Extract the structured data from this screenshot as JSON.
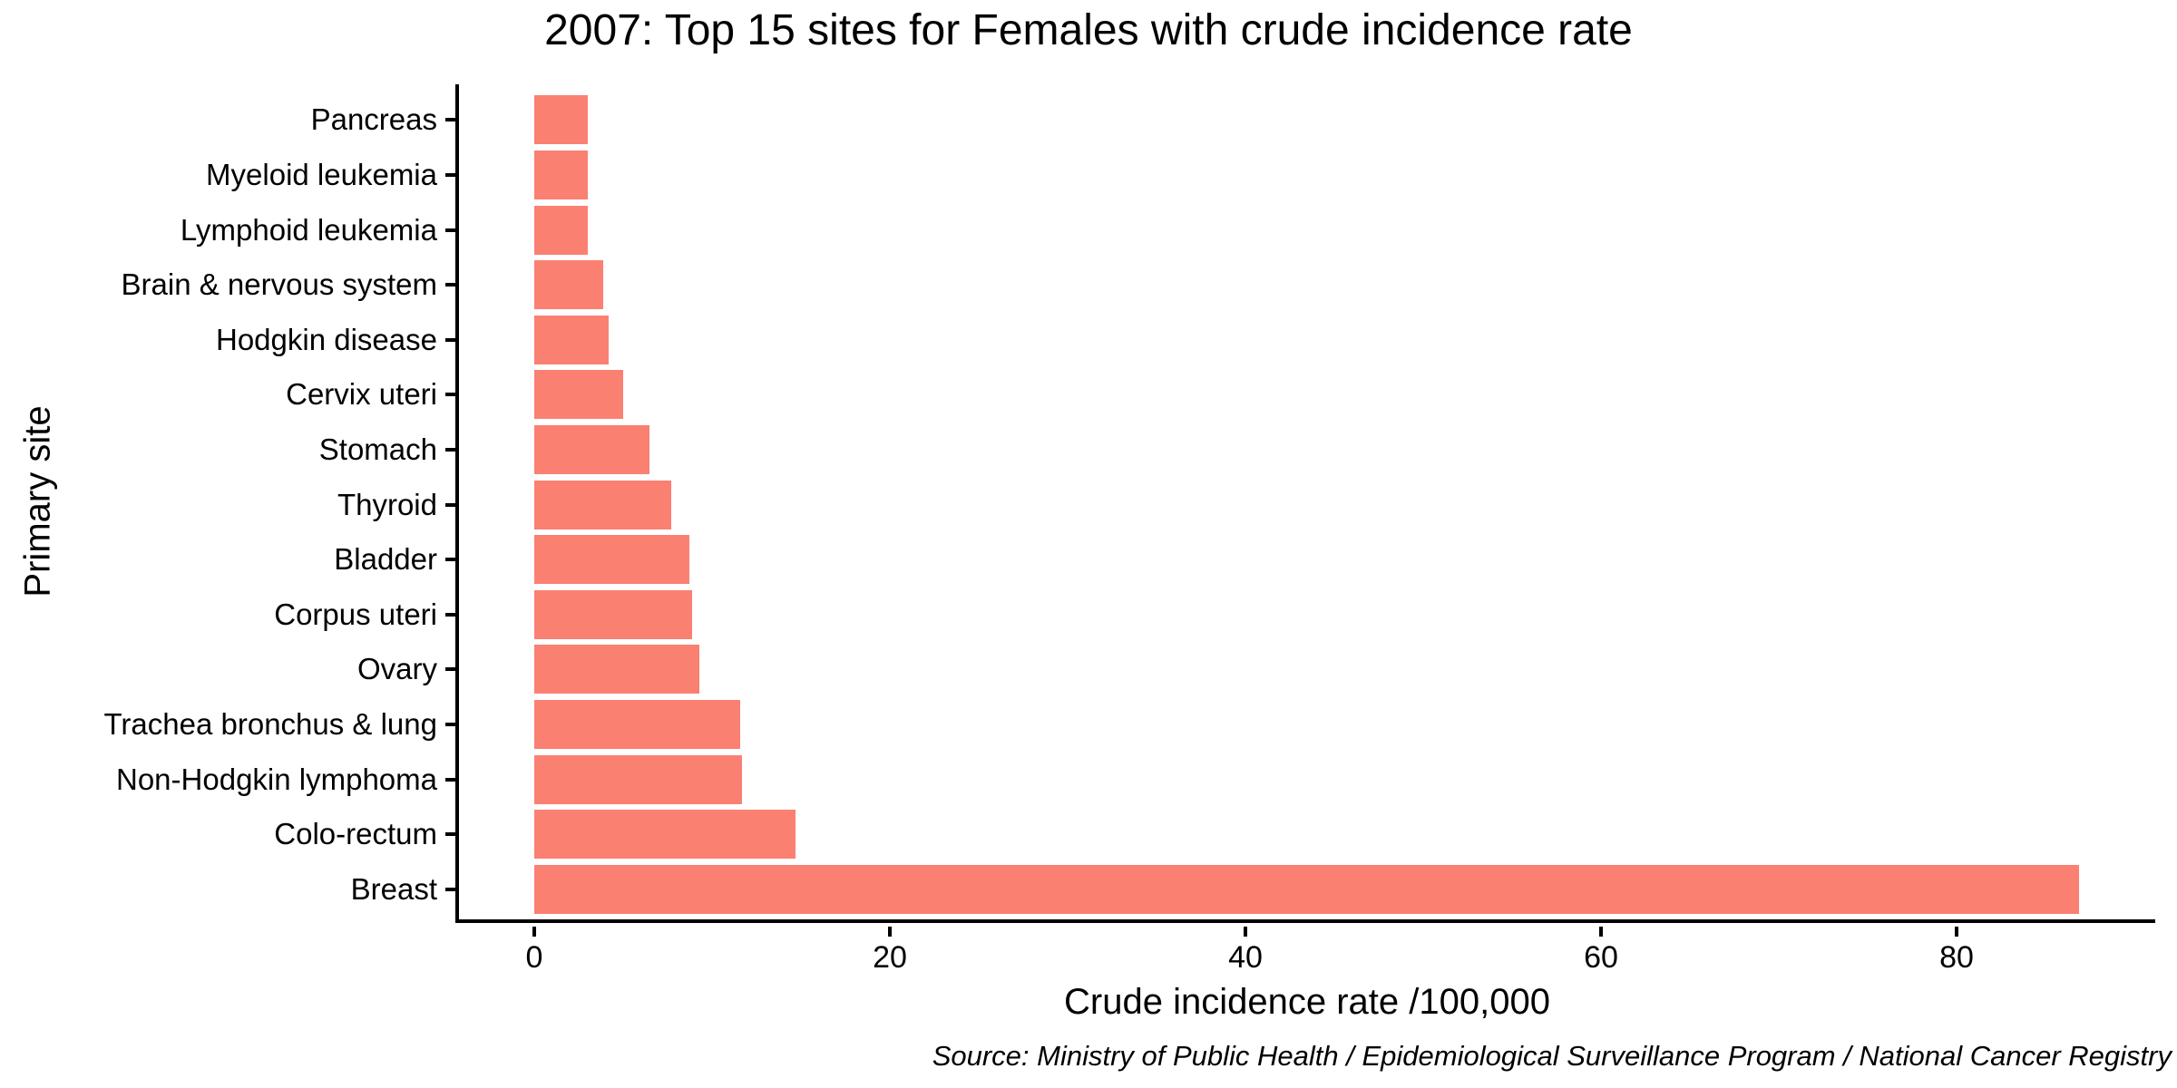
{
  "title": "2007: Top 15 sites for Females with crude incidence rate",
  "source_note": "Source: Ministry of Public Health / Epidemiological Surveillance Program / National Cancer Registry",
  "chart_data": {
    "type": "bar",
    "orientation": "horizontal",
    "title": "2007: Top 15 sites for Females with crude incidence rate",
    "xlabel": "Crude incidence rate /100,000",
    "ylabel": "Primary site",
    "categories": [
      "Pancreas",
      "Myeloid leukemia",
      "Lymphoid leukemia",
      "Brain & nervous system",
      "Hodgkin disease",
      "Cervix uteri",
      "Stomach",
      "Thyroid",
      "Bladder",
      "Corpus uteri",
      "Ovary",
      "Trachea bronchus & lung",
      "Non-Hodgkin lymphoma",
      "Colo-rectum",
      "Breast"
    ],
    "values": [
      3.0,
      3.0,
      3.0,
      3.9,
      4.2,
      5.0,
      6.5,
      7.7,
      8.7,
      8.9,
      9.3,
      11.6,
      11.7,
      14.7,
      86.9
    ],
    "x_ticks": [
      0,
      20,
      40,
      60,
      80
    ],
    "xlim": [
      0,
      91.2
    ],
    "grid": false,
    "legend": "none",
    "bar_color": "#FA8072",
    "axis_color": "#000000",
    "text_color": "#000000",
    "background_color": "#FFFFFF"
  }
}
